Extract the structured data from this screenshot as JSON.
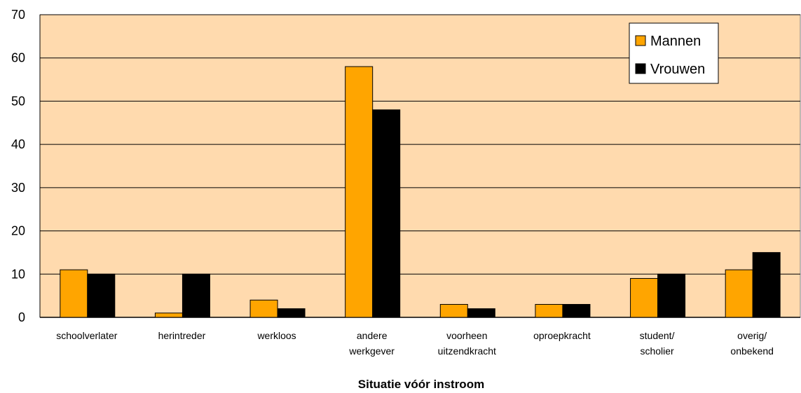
{
  "chart_data": {
    "type": "bar",
    "title": "",
    "xlabel": "Situatie vóór instroom",
    "ylabel": "",
    "ylim": [
      0,
      70
    ],
    "yticks": [
      0,
      10,
      20,
      30,
      40,
      50,
      60,
      70
    ],
    "grid": true,
    "legend_position": "top-right",
    "plot_background": "#FFDAAE",
    "categories": [
      [
        "schoolverlater"
      ],
      [
        "herintreder"
      ],
      [
        "werkloos"
      ],
      [
        "andere",
        "werkgever"
      ],
      [
        "voorheen",
        "uitzendkracht"
      ],
      [
        "oproepkracht"
      ],
      [
        "student/",
        "scholier"
      ],
      [
        "overig/",
        "onbekend"
      ]
    ],
    "series": [
      {
        "name": "Mannen",
        "color": "#FFA500",
        "values": [
          11,
          1,
          4,
          58,
          3,
          3,
          9,
          11
        ]
      },
      {
        "name": "Vrouwen",
        "color": "#000000",
        "values": [
          10,
          10,
          2,
          48,
          2,
          3,
          10,
          15
        ]
      }
    ]
  }
}
